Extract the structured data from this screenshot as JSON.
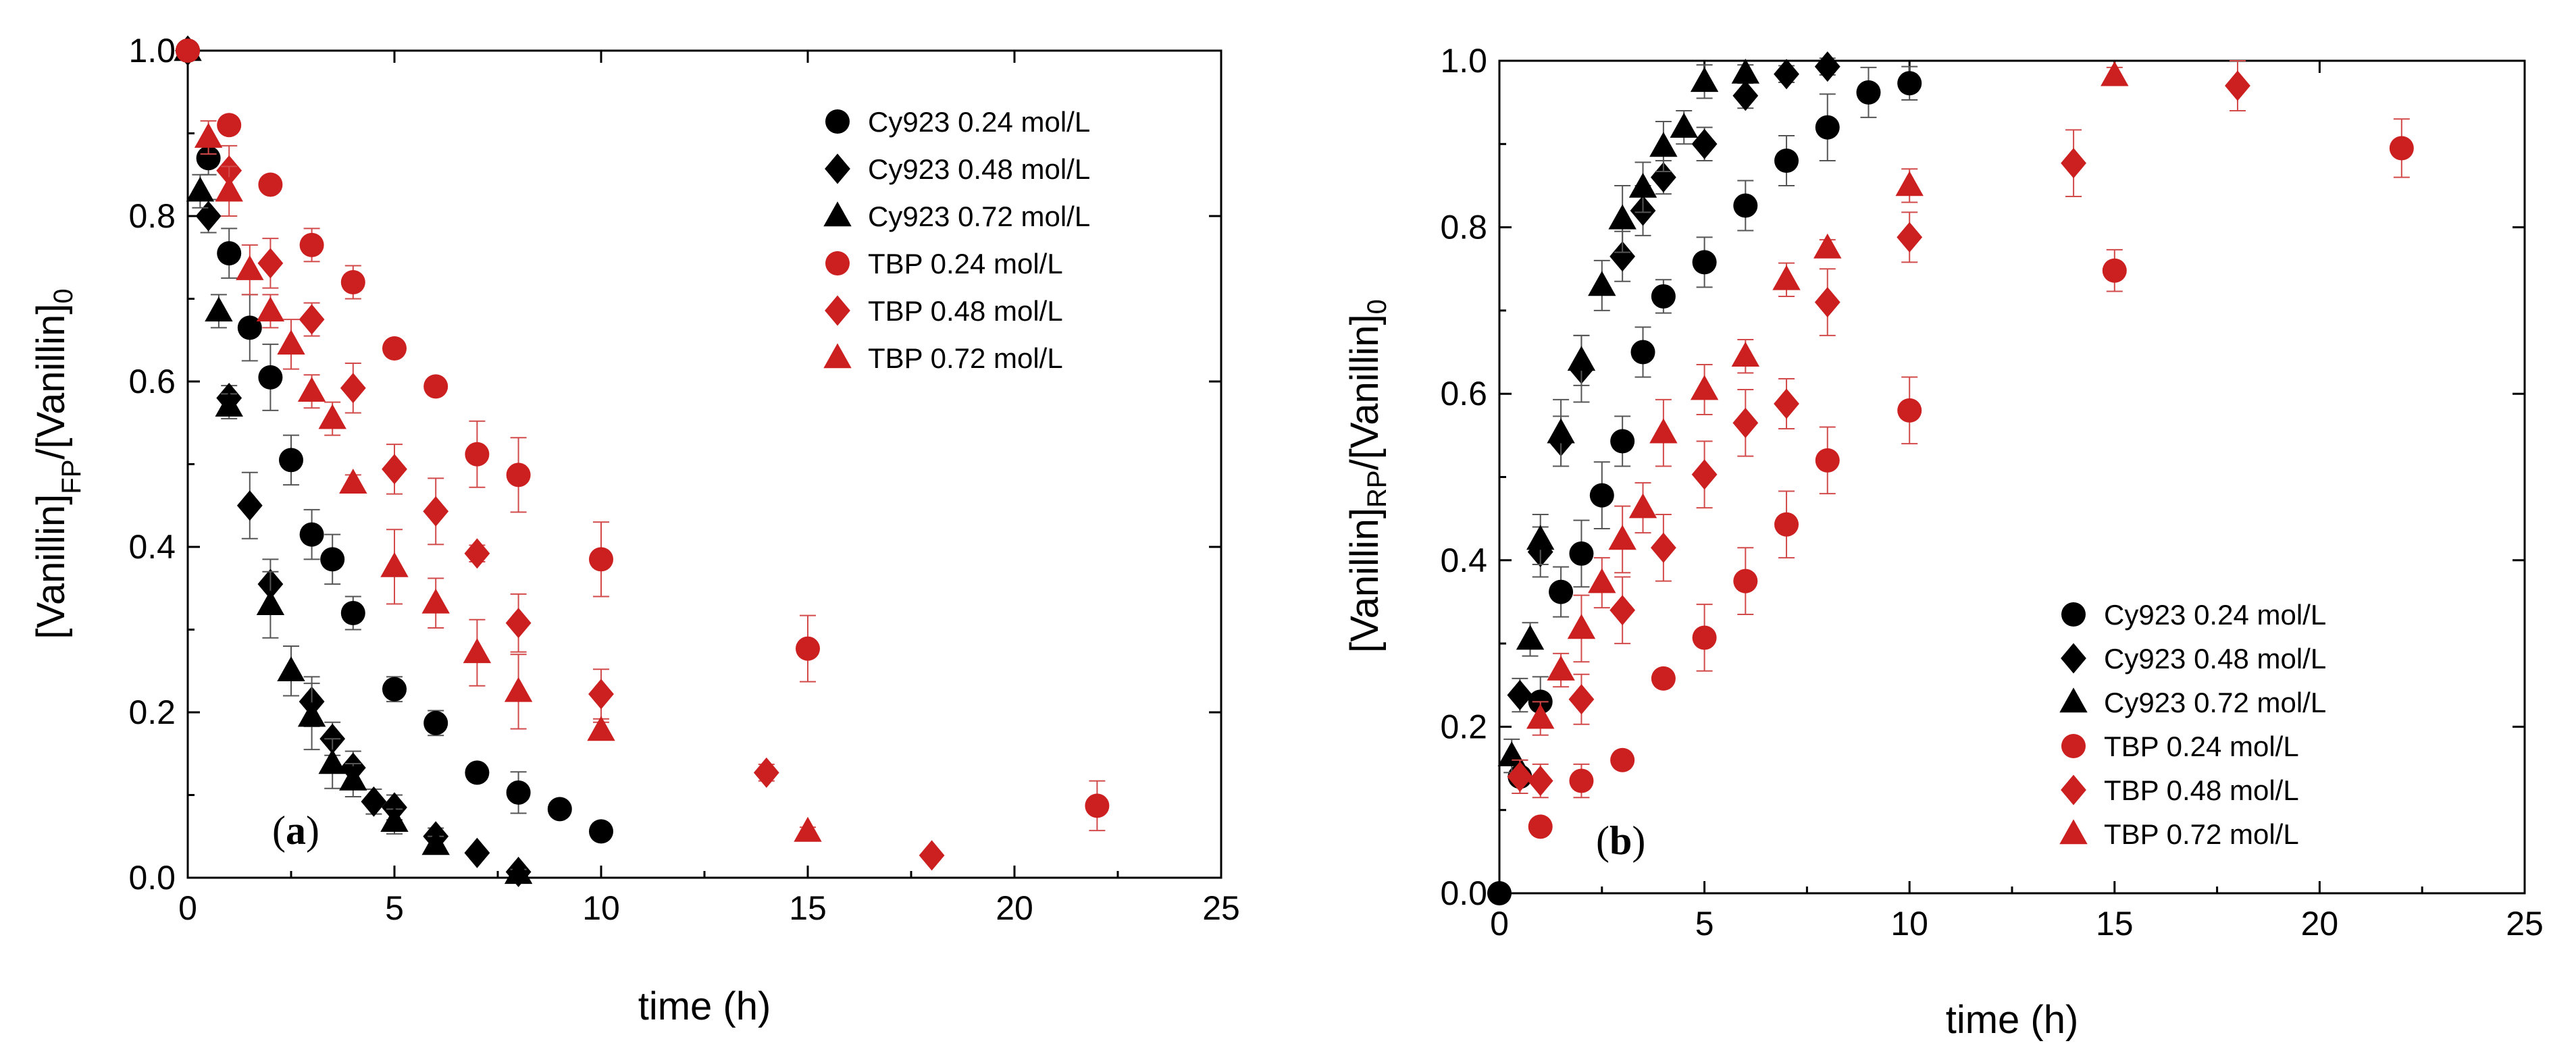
{
  "chart_data": [
    {
      "type": "scatter",
      "panel": "a",
      "panel_label": [
        "(",
        "a",
        ")"
      ],
      "xlabel": "time (h)",
      "ylabel": {
        "base": "[Vanillin]",
        "sub": "FP",
        "mid": "/[Vanillin]",
        "sub2": "0"
      },
      "xlim": [
        0,
        25
      ],
      "ylim": [
        0,
        1.0
      ],
      "xticks": [
        "0",
        "5",
        "10",
        "15",
        "20",
        "25"
      ],
      "yticks": [
        "0.0",
        "0.2",
        "0.4",
        "0.6",
        "0.8",
        "1.0"
      ],
      "legend_position": "top-right",
      "series": [
        {
          "name": "Cy923 0.24 mol/L",
          "marker": "circle",
          "color": "#000000",
          "x": [
            0,
            0.5,
            1,
            1.5,
            2,
            2.5,
            3,
            3.5,
            4,
            5,
            6,
            7,
            8,
            9,
            10
          ],
          "y": [
            1.0,
            0.87,
            0.755,
            0.665,
            0.605,
            0.505,
            0.415,
            0.385,
            0.32,
            0.228,
            0.187,
            0.127,
            0.103,
            0.083,
            0.056
          ],
          "err": [
            0,
            0.02,
            0.03,
            0.04,
            0.04,
            0.03,
            0.03,
            0.03,
            0.02,
            0.015,
            0.015,
            0.01,
            0.025,
            0.01,
            0.01
          ]
        },
        {
          "name": "Cy923 0.48 mol/L",
          "marker": "diamond",
          "color": "#000000",
          "x": [
            0,
            0.5,
            1,
            1.5,
            2,
            3,
            3.5,
            4,
            4.5,
            5,
            6,
            7,
            8
          ],
          "y": [
            1.0,
            0.8,
            0.58,
            0.45,
            0.355,
            0.213,
            0.168,
            0.133,
            0.092,
            0.085,
            0.05,
            0.03,
            0.007
          ],
          "err": [
            0,
            0.02,
            0.015,
            0.04,
            0.03,
            0.03,
            0.02,
            0.02,
            0.015,
            0.015,
            0.01,
            0.005,
            0.005
          ]
        },
        {
          "name": "Cy923 0.72 mol/L",
          "marker": "triangle",
          "color": "#000000",
          "x": [
            0,
            0.3,
            0.75,
            1,
            2,
            2.5,
            3,
            3.5,
            4,
            5,
            6,
            8
          ],
          "y": [
            1.0,
            0.83,
            0.685,
            0.57,
            0.33,
            0.25,
            0.195,
            0.138,
            0.118,
            0.068,
            0.04,
            0.005
          ],
          "err": [
            0,
            0.02,
            0.02,
            0.015,
            0.04,
            0.03,
            0.04,
            0.03,
            0.02,
            0.015,
            0.01,
            0.005
          ]
        },
        {
          "name": "TBP 0.24 mol/L",
          "marker": "circle",
          "color": "#cc1f1f",
          "x": [
            0,
            1,
            2,
            3,
            4,
            5,
            6,
            7,
            8,
            10,
            15,
            22
          ],
          "y": [
            1.0,
            0.91,
            0.838,
            0.765,
            0.72,
            0.64,
            0.594,
            0.512,
            0.487,
            0.385,
            0.277,
            0.087
          ],
          "err": [
            0,
            0.01,
            0.01,
            0.02,
            0.02,
            0.01,
            0.01,
            0.04,
            0.045,
            0.045,
            0.04,
            0.03
          ]
        },
        {
          "name": "TBP 0.48 mol/L",
          "marker": "diamond",
          "color": "#cc1f1f",
          "x": [
            1,
            2,
            3,
            4,
            5,
            6,
            7,
            8,
            10,
            14,
            18
          ],
          "y": [
            0.855,
            0.743,
            0.675,
            0.592,
            0.494,
            0.443,
            0.392,
            0.308,
            0.222,
            0.127,
            0.027
          ],
          "err": [
            0.03,
            0.03,
            0.02,
            0.03,
            0.03,
            0.04,
            0.01,
            0.035,
            0.03,
            0.01,
            0.005
          ]
        },
        {
          "name": "TBP 0.72 mol/L",
          "marker": "triangle",
          "color": "#cc1f1f",
          "x": [
            0.5,
            1,
            1.5,
            2,
            2.5,
            3,
            3.5,
            4,
            5,
            6,
            7,
            8,
            10,
            15
          ],
          "y": [
            0.895,
            0.83,
            0.735,
            0.685,
            0.645,
            0.588,
            0.555,
            0.477,
            0.376,
            0.332,
            0.272,
            0.225,
            0.178,
            0.056
          ],
          "err": [
            0.02,
            0.03,
            0.03,
            0.02,
            0.03,
            0.02,
            0.02,
            0.01,
            0.045,
            0.03,
            0.04,
            0.045,
            0.01,
            0.005
          ]
        }
      ]
    },
    {
      "type": "scatter",
      "panel": "b",
      "panel_label": [
        "(",
        "b",
        ")"
      ],
      "xlabel": "time (h)",
      "ylabel": {
        "base": "[Vanillin]",
        "sub": "RP",
        "mid": "/[Vanillin]",
        "sub2": "0"
      },
      "xlim": [
        0,
        25
      ],
      "ylim": [
        0,
        1.0
      ],
      "xticks": [
        "0",
        "5",
        "10",
        "15",
        "20",
        "25"
      ],
      "yticks": [
        "0.0",
        "0.2",
        "0.4",
        "0.6",
        "0.8",
        "1.0"
      ],
      "legend_position": "bottom-right",
      "series": [
        {
          "name": "Cy923 0.24 mol/L",
          "marker": "circle",
          "color": "#000000",
          "x": [
            0,
            0.5,
            1,
            1.5,
            2,
            2.5,
            3,
            3.5,
            4,
            5,
            6,
            7,
            8,
            9,
            10
          ],
          "y": [
            0,
            0.14,
            0.23,
            0.362,
            0.408,
            0.478,
            0.543,
            0.65,
            0.717,
            0.758,
            0.826,
            0.88,
            0.92,
            0.962,
            0.973
          ],
          "err": [
            0,
            0.02,
            0.03,
            0.03,
            0.04,
            0.04,
            0.03,
            0.03,
            0.02,
            0.03,
            0.03,
            0.03,
            0.04,
            0.03,
            0.02
          ]
        },
        {
          "name": "Cy923 0.48 mol/L",
          "marker": "diamond",
          "color": "#000000",
          "x": [
            0.5,
            1,
            1.5,
            2,
            3,
            3.5,
            4,
            5,
            6,
            7,
            8
          ],
          "y": [
            0.238,
            0.41,
            0.543,
            0.63,
            0.765,
            0.82,
            0.86,
            0.9,
            0.958,
            0.984,
            0.993
          ],
          "err": [
            0.02,
            0.03,
            0.03,
            0.04,
            0.03,
            0.03,
            0.02,
            0.02,
            0.015,
            0.01,
            0.01
          ]
        },
        {
          "name": "Cy923 0.72 mol/L",
          "marker": "triangle",
          "color": "#000000",
          "x": [
            0.3,
            0.75,
            1,
            1.5,
            2,
            2.5,
            3,
            3.5,
            4,
            4.5,
            5,
            6
          ],
          "y": [
            0.165,
            0.305,
            0.425,
            0.553,
            0.64,
            0.73,
            0.81,
            0.848,
            0.897,
            0.92,
            0.975,
            0.985
          ],
          "err": [
            0.02,
            0.02,
            0.03,
            0.04,
            0.03,
            0.03,
            0.04,
            0.03,
            0.03,
            0.02,
            0.02,
            0.01
          ]
        },
        {
          "name": "TBP 0.24 mol/L",
          "marker": "circle",
          "color": "#cc1f1f",
          "x": [
            1,
            2,
            3,
            4,
            5,
            6,
            7,
            8,
            10,
            15,
            22
          ],
          "y": [
            0.08,
            0.135,
            0.16,
            0.258,
            0.307,
            0.375,
            0.443,
            0.52,
            0.58,
            0.748,
            0.895
          ],
          "err": [
            0.01,
            0.02,
            0.01,
            0.01,
            0.04,
            0.04,
            0.04,
            0.04,
            0.04,
            0.025,
            0.035
          ]
        },
        {
          "name": "TBP 0.48 mol/L",
          "marker": "diamond",
          "color": "#cc1f1f",
          "x": [
            0.5,
            1,
            2,
            3,
            4,
            5,
            6,
            7,
            8,
            10,
            14,
            18
          ],
          "y": [
            0.14,
            0.135,
            0.233,
            0.34,
            0.415,
            0.503,
            0.565,
            0.588,
            0.71,
            0.788,
            0.877,
            0.97
          ],
          "err": [
            0.02,
            0.02,
            0.03,
            0.04,
            0.04,
            0.04,
            0.04,
            0.03,
            0.04,
            0.03,
            0.04,
            0.03
          ]
        },
        {
          "name": "TBP 0.72 mol/L",
          "marker": "triangle",
          "color": "#cc1f1f",
          "x": [
            1,
            1.5,
            2,
            2.5,
            3,
            3.5,
            4,
            5,
            6,
            7,
            8,
            10,
            15
          ],
          "y": [
            0.21,
            0.268,
            0.318,
            0.373,
            0.425,
            0.463,
            0.553,
            0.605,
            0.645,
            0.737,
            0.775,
            0.85,
            0.982
          ],
          "err": [
            0.02,
            0.02,
            0.04,
            0.03,
            0.04,
            0.03,
            0.04,
            0.03,
            0.02,
            0.02,
            0.01,
            0.02,
            0.01
          ]
        }
      ]
    }
  ]
}
